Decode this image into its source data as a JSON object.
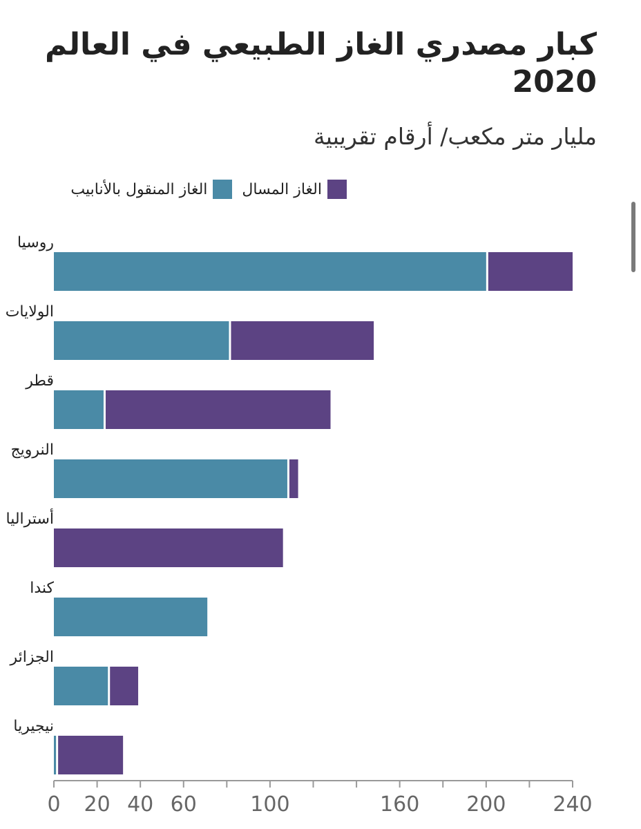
{
  "chart_data": {
    "type": "bar",
    "orientation": "horizontal",
    "stacked": true,
    "title": "كبار مصدري الغاز الطبيعي في العالم 2020",
    "subtitle": "مليار متر مكعب/ أرقام تقريبية",
    "categories": [
      "روسيا",
      "الولايات المتحدة",
      "قطر",
      "النرويج",
      "أستراليا",
      "كندا",
      "الجزائر",
      "نيجيريا"
    ],
    "series": [
      {
        "name": "الغاز المنقول بالأنابيب",
        "color": "#4a8aa6",
        "values": [
          200,
          81,
          23,
          108,
          0,
          71,
          25,
          1
        ]
      },
      {
        "name": "الغاز المسال",
        "color": "#5c4383",
        "values": [
          40,
          67,
          105,
          5,
          106,
          0,
          14,
          31
        ]
      }
    ],
    "xlim": [
      0,
      240
    ],
    "xticks": [
      0,
      20,
      40,
      60,
      100,
      160,
      200,
      240
    ],
    "legend_position": "top",
    "grid": false
  }
}
